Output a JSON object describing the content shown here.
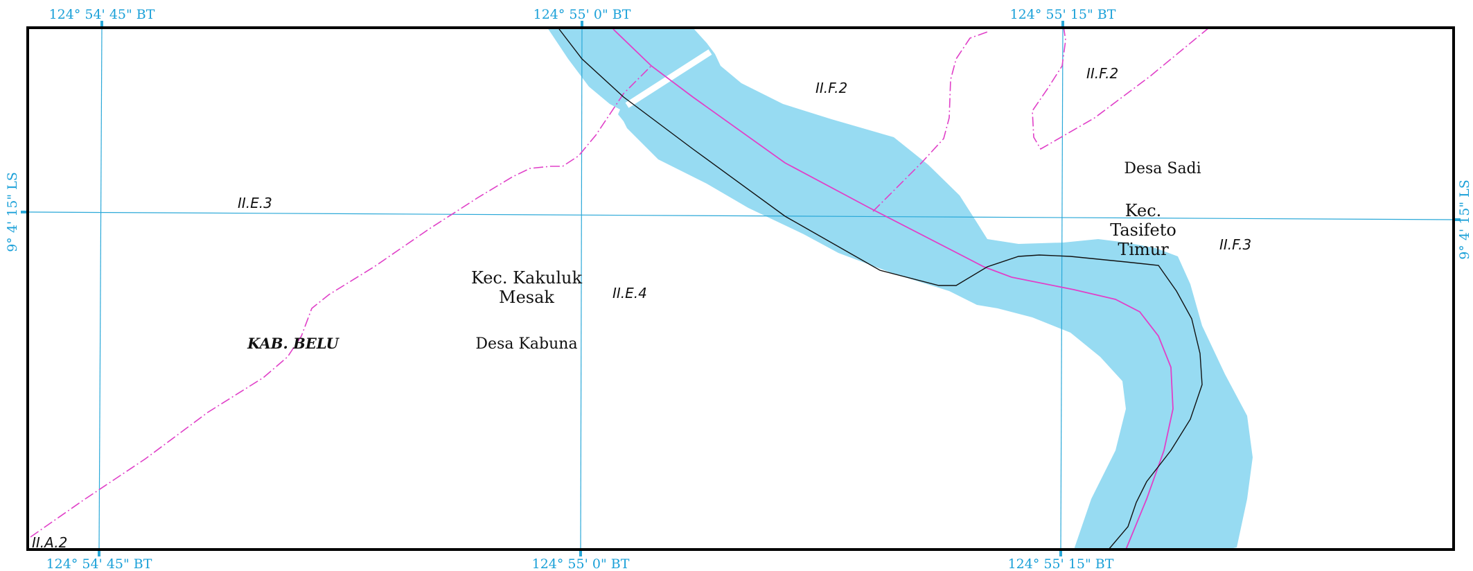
{
  "map": {
    "colors": {
      "water": "#97dbf2",
      "grid": "#2aa8d8",
      "coord_text": "#1aa0d8",
      "admin_boundary": "#e040c8",
      "road": "#111111",
      "frame": "#000000"
    },
    "coordinates": {
      "top": [
        "124° 54' 45\" BT",
        "124° 55' 0\" BT",
        "124° 55' 15\" BT"
      ],
      "bottom": [
        "124° 54' 45\" BT",
        "124° 55' 0\" BT",
        "124° 55' 15\" BT"
      ],
      "left": "9° 4' 15\" LS",
      "right": "9° 4' 15\" LS"
    },
    "places": {
      "desa_sadi": "Desa Sadi",
      "kec_tasifeto_timur": [
        "Kec.",
        "Tasifeto",
        "Timur"
      ],
      "kec_kakuluk_mesak": [
        "Kec. Kakuluk",
        "Mesak"
      ],
      "desa_kabuna": "Desa Kabuna",
      "kab_belu": "KAB. BELU"
    },
    "sheet_codes": {
      "ii_f_2_a": "II.F.2",
      "ii_f_2_b": "II.F.2",
      "ii_e_3": "II.E.3",
      "ii_e_4": "II.E.4",
      "ii_f_3": "II.F.3",
      "ii_a_2": "II.A.2"
    },
    "legend_icons": {
      "river": "river-area",
      "boundary": "dash-dot-boundary-line",
      "road": "road-line"
    }
  }
}
